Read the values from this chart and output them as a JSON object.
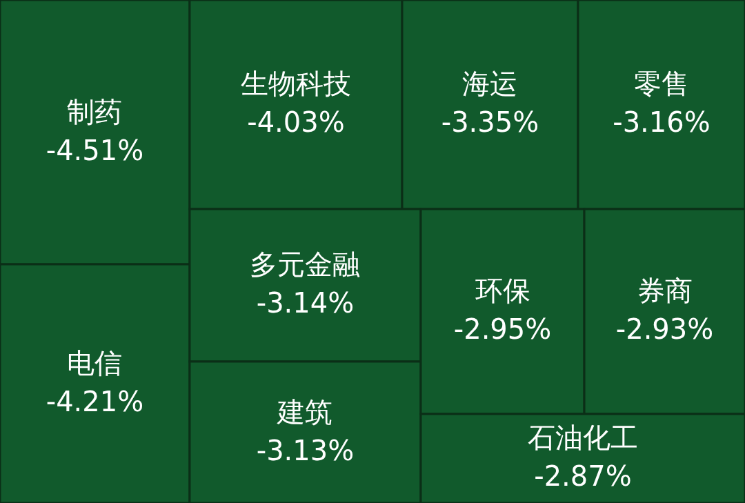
{
  "chart_data": {
    "type": "other",
    "categories": [
      "制药",
      "电信",
      "生物科技",
      "海运",
      "零售",
      "多元金融",
      "建筑",
      "环保",
      "券商",
      "石油化工"
    ],
    "values": [
      -4.51,
      -4.21,
      -4.03,
      -3.35,
      -3.16,
      -3.14,
      -3.13,
      -2.95,
      -2.93,
      -2.87
    ],
    "value_labels": [
      "-4.51%",
      "-4.21%",
      "-4.03%",
      "-3.35%",
      "-3.16%",
      "-3.14%",
      "-3.13%",
      "-2.95%",
      "-2.93%",
      "-2.87%"
    ],
    "color": "#115a2c"
  }
}
